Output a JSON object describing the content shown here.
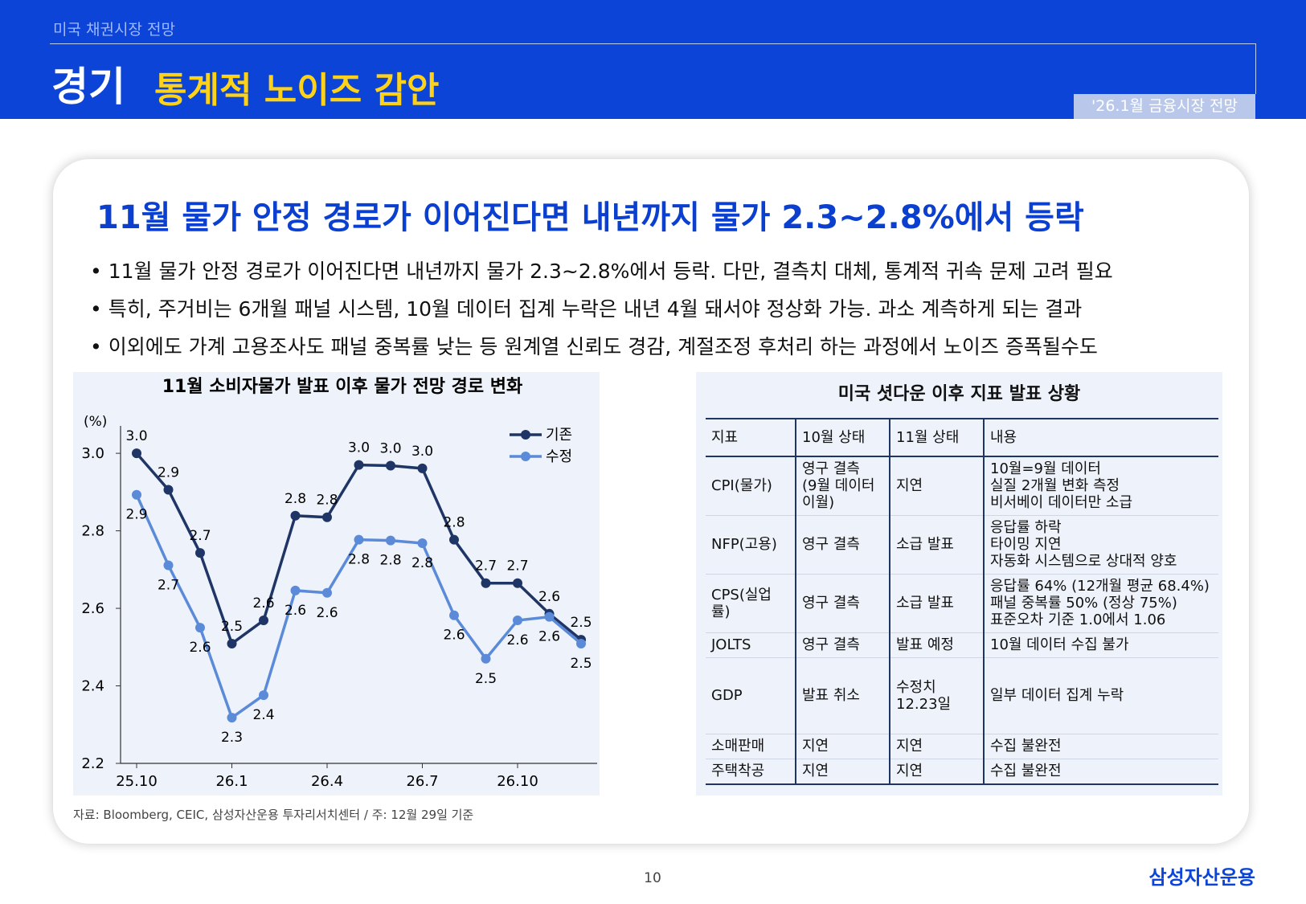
{
  "header": {
    "section": "미국 채권시장 전망",
    "title": "경기",
    "subtitle": "통계적 노이즈 감안",
    "badge": "'26.1월 금융시장 전망"
  },
  "headline": "11월 물가 안정 경로가 이어진다면 내년까지 물가 2.3~2.8%에서 등락",
  "bullets": [
    "11월 물가 안정 경로가 이어진다면 내년까지 물가 2.3~2.8%에서 등락. 다만, 결측치 대체, 통계적 귀속 문제 고려 필요",
    "특히, 주거비는 6개월 패널 시스템, 10월 데이터 집계 누락은 내년 4월 돼서야 정상화 가능. 과소 계측하게 되는 결과",
    "이외에도 가계 고용조사도 패널 중복률 낮는 등 원계열 신뢰도 경감, 계절조정 후처리 하는 과정에서 노이즈 증폭될수도"
  ],
  "chart_data": {
    "type": "line",
    "title": "11월 소비자물가 발표 이후 물가 전망 경로 변화",
    "y_label": "(%)",
    "x": [
      "25.10",
      null,
      null,
      "26.1",
      null,
      null,
      "26.4",
      null,
      null,
      "26.7",
      null,
      null,
      "26.10",
      null,
      null
    ],
    "ylim": [
      2.2,
      3.05
    ],
    "yticks": [
      2.2,
      2.4,
      2.6,
      2.8,
      {
        "value": 3,
        "label": "3.0"
      }
    ],
    "legend": "top-right",
    "series": [
      {
        "name": "기존",
        "color": "#1e3566",
        "values": [
          3.0,
          2.906,
          2.743,
          2.509,
          2.569,
          2.839,
          2.835,
          2.97,
          2.968,
          2.961,
          2.777,
          2.665,
          2.665,
          2.586,
          2.519
        ],
        "value_labels": [
          "3.0",
          "2.9",
          "2.7",
          "2.5",
          "2.6",
          "2.8",
          "2.8",
          "3.0",
          "3.0",
          "3.0",
          "2.8",
          "2.7",
          "2.7",
          "2.6",
          "2.5"
        ]
      },
      {
        "name": "수정",
        "color": "#5b8bd8",
        "values": [
          2.893,
          2.711,
          2.55,
          2.318,
          2.376,
          2.646,
          2.64,
          2.777,
          2.775,
          2.768,
          2.582,
          2.47,
          2.569,
          2.578,
          2.509
        ],
        "value_labels": [
          "2.9",
          "2.7",
          "2.6",
          "2.3",
          "2.4",
          "2.6",
          "2.6",
          "2.8",
          "2.8",
          "2.8",
          "2.6",
          "2.5",
          "2.6",
          "2.6",
          "2.5"
        ]
      }
    ]
  },
  "table": {
    "title": "미국 셧다운 이후 지표 발표 상황",
    "columns": [
      "지표",
      "10월 상태",
      "11월 상태",
      "내용"
    ],
    "rows": [
      [
        "CPI(물가)",
        "영구 결측\n(9월 데이터\n이월)",
        "지연",
        "10월=9월 데이터\n실질 2개월 변화 측정\n비서베이 데이터만 소급"
      ],
      [
        "NFP(고용)",
        "영구 결측",
        "소급 발표",
        "응답률 하락\n타이밍 지연\n자동화 시스템으로 상대적 양호"
      ],
      [
        "CPS(실업률)",
        "영구 결측",
        "소급 발표",
        "응답률 64% (12개월 평균 68.4%)\n패널 중복률 50% (정상 75%)\n표준오차 기준 1.0에서 1.06"
      ],
      [
        "JOLTS",
        "영구 결측",
        "발표 예정",
        "10월 데이터 수집 불가"
      ],
      [
        "GDP",
        "발표 취소",
        "수정치\n12.23일",
        "일부 데이터 집계 누락"
      ],
      [
        "소매판매",
        "지연",
        "지연",
        "수집 불완전"
      ],
      [
        "주택착공",
        "지연",
        "지연",
        "수집 불완전"
      ]
    ]
  },
  "source": "자료: Bloomberg, CEIC, 삼성자산운용 투자리서치센터 / 주: 12월 29일 기준",
  "page_number": "10",
  "logo": "삼성자산운용"
}
